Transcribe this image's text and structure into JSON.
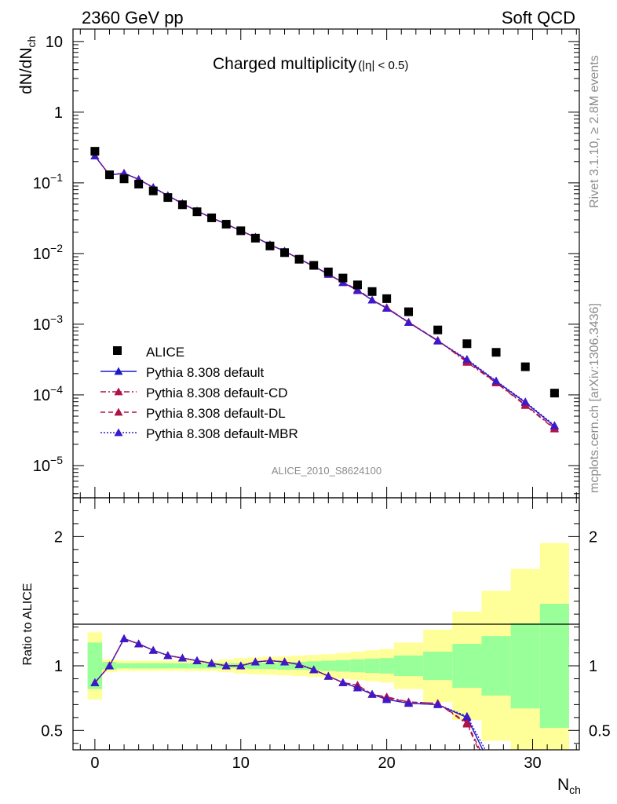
{
  "header": {
    "left": "2360 GeV pp",
    "right": "Soft QCD"
  },
  "side_text": {
    "top": "Rivet 3.1.10, ≥ 2.8M events",
    "bottom": "mcplots.cern.ch [arXiv:1306.3436]"
  },
  "watermark": "ALICE_2010_S8624100",
  "chart_data": [
    {
      "type": "line",
      "title": "Charged multiplicity",
      "title_suffix": "(|η| < 0.5)",
      "ylabel_main": "dN/dN",
      "ylabel_sub": "ch",
      "yscale": "log",
      "ylim": [
        3.5e-06,
        15
      ],
      "xlim": [
        -1.5,
        33.2
      ],
      "ytick_labels": [
        {
          "base": "10",
          "exp": "",
          "value": 10
        },
        {
          "base": "1",
          "exp": "",
          "value": 1
        },
        {
          "base": "10",
          "exp": "−1",
          "value": 0.1
        },
        {
          "base": "10",
          "exp": "−2",
          "value": 0.01
        },
        {
          "base": "10",
          "exp": "−3",
          "value": 0.001
        },
        {
          "base": "10",
          "exp": "−4",
          "value": 0.0001
        },
        {
          "base": "10",
          "exp": "−5",
          "value": 1e-05
        }
      ],
      "legend_position": "bottom-left",
      "data": {
        "name": "ALICE",
        "x": [
          0,
          1,
          2,
          3,
          4,
          5,
          6,
          7,
          8,
          9,
          10,
          11,
          12,
          13,
          14,
          15,
          16,
          17,
          18,
          19,
          20,
          21.5,
          23.5,
          25.5,
          27.5,
          29.5,
          31.5
        ],
        "y": [
          0.28,
          0.13,
          0.114,
          0.096,
          0.077,
          0.062,
          0.049,
          0.039,
          0.032,
          0.026,
          0.021,
          0.0165,
          0.0128,
          0.0103,
          0.0083,
          0.0068,
          0.0055,
          0.0045,
          0.0036,
          0.0029,
          0.0023,
          0.0015,
          0.00083,
          0.00053,
          0.0004,
          0.00025,
          0.000106
        ]
      },
      "series": [
        {
          "name": "Pythia 8.308 default",
          "color": "#1a1acc",
          "style": "solid",
          "x": [
            0,
            1,
            2,
            3,
            4,
            5,
            6,
            7,
            8,
            9,
            10,
            11,
            12,
            13,
            14,
            15,
            16,
            17,
            18,
            19,
            20,
            21.5,
            23.5,
            25.5,
            27.5,
            29.5,
            31.5
          ],
          "y": [
            0.24,
            0.129,
            0.137,
            0.112,
            0.086,
            0.066,
            0.051,
            0.04,
            0.032,
            0.0261,
            0.021,
            0.017,
            0.0133,
            0.0108,
            0.0084,
            0.0066,
            0.0051,
            0.0039,
            0.003,
            0.0022,
            0.00168,
            0.00106,
            0.00058,
            0.00031,
            0.000155,
            7.8e-05,
            3.6e-05
          ]
        },
        {
          "name": "Pythia 8.308 default-CD",
          "color": "#b0124a",
          "style": "dashdot",
          "x": [
            0,
            1,
            2,
            3,
            4,
            5,
            6,
            7,
            8,
            9,
            10,
            11,
            12,
            13,
            14,
            15,
            16,
            17,
            18,
            19,
            20,
            21.5,
            23.5,
            25.5,
            27.5,
            29.5,
            31.5
          ],
          "y": [
            0.24,
            0.129,
            0.137,
            0.112,
            0.086,
            0.066,
            0.051,
            0.04,
            0.032,
            0.0261,
            0.021,
            0.017,
            0.0133,
            0.0108,
            0.0084,
            0.0066,
            0.0051,
            0.0039,
            0.0031,
            0.0022,
            0.00172,
            0.00107,
            0.00059,
            0.00029,
            0.000148,
            7.1e-05,
            3.3e-05
          ]
        },
        {
          "name": "Pythia 8.308 default-DL",
          "color": "#b0124a",
          "style": "dashed",
          "x": [
            0,
            1,
            2,
            3,
            4,
            5,
            6,
            7,
            8,
            9,
            10,
            11,
            12,
            13,
            14,
            15,
            16,
            17,
            18,
            19,
            20,
            21.5,
            23.5,
            25.5,
            27.5,
            29.5,
            31.5
          ],
          "y": [
            0.24,
            0.129,
            0.137,
            0.112,
            0.086,
            0.066,
            0.051,
            0.04,
            0.032,
            0.0261,
            0.021,
            0.017,
            0.0133,
            0.0108,
            0.0084,
            0.0066,
            0.0051,
            0.0039,
            0.0031,
            0.0022,
            0.00171,
            0.00106,
            0.00059,
            0.0003,
            0.00015,
            7.3e-05,
            3.4e-05
          ]
        },
        {
          "name": "Pythia 8.308 default-MBR",
          "color": "#3a1acc",
          "style": "dotted",
          "x": [
            0,
            1,
            2,
            3,
            4,
            5,
            6,
            7,
            8,
            9,
            10,
            11,
            12,
            13,
            14,
            15,
            16,
            17,
            18,
            19,
            20,
            21.5,
            23.5,
            25.5,
            27.5,
            29.5,
            31.5
          ],
          "y": [
            0.24,
            0.129,
            0.137,
            0.112,
            0.086,
            0.066,
            0.051,
            0.04,
            0.032,
            0.0261,
            0.021,
            0.017,
            0.0133,
            0.0108,
            0.0084,
            0.0066,
            0.0051,
            0.0039,
            0.003,
            0.0022,
            0.00168,
            0.00106,
            0.00058,
            0.00032,
            0.000158,
            8e-05,
            3.7e-05
          ]
        }
      ]
    },
    {
      "type": "line",
      "ylabel": "Ratio to ALICE",
      "xlabel_main": "N",
      "xlabel_sub": "ch",
      "ylim": [
        0.35,
        2.3
      ],
      "xlim": [
        -1.5,
        33.2
      ],
      "xticks": [
        0,
        10,
        20,
        30
      ],
      "yticks": [
        0.5,
        1,
        2
      ],
      "ytick_labels": [
        "0.5",
        "1",
        "2"
      ],
      "bands": {
        "x_edges": [
          [
            -0.5,
            0.5
          ],
          [
            0.5,
            1.5
          ],
          [
            1.5,
            2.5
          ],
          [
            2.5,
            3.5
          ],
          [
            3.5,
            4.5
          ],
          [
            4.5,
            5.5
          ],
          [
            5.5,
            6.5
          ],
          [
            6.5,
            7.5
          ],
          [
            7.5,
            8.5
          ],
          [
            8.5,
            9.5
          ],
          [
            9.5,
            10.5
          ],
          [
            10.5,
            11.5
          ],
          [
            11.5,
            12.5
          ],
          [
            12.5,
            13.5
          ],
          [
            13.5,
            14.5
          ],
          [
            14.5,
            15.5
          ],
          [
            15.5,
            16.5
          ],
          [
            16.5,
            17.5
          ],
          [
            17.5,
            18.5
          ],
          [
            18.5,
            19.5
          ],
          [
            19.5,
            20.5
          ],
          [
            20.5,
            22.5
          ],
          [
            22.5,
            24.5
          ],
          [
            24.5,
            26.5
          ],
          [
            26.5,
            28.5
          ],
          [
            28.5,
            30.5
          ],
          [
            30.5,
            32.5
          ]
        ],
        "green_half": [
          0.18,
          0.03,
          0.02,
          0.02,
          0.02,
          0.02,
          0.02,
          0.02,
          0.02,
          0.02,
          0.02,
          0.025,
          0.025,
          0.03,
          0.03,
          0.035,
          0.04,
          0.045,
          0.05,
          0.055,
          0.06,
          0.08,
          0.11,
          0.17,
          0.23,
          0.33,
          0.48
        ],
        "yellow_half": [
          0.26,
          0.05,
          0.04,
          0.04,
          0.04,
          0.04,
          0.04,
          0.04,
          0.04,
          0.05,
          0.06,
          0.065,
          0.07,
          0.075,
          0.08,
          0.085,
          0.09,
          0.1,
          0.11,
          0.12,
          0.13,
          0.18,
          0.28,
          0.42,
          0.58,
          0.75,
          0.95
        ]
      },
      "series": [
        {
          "name": "Pythia 8.308 default",
          "color": "#1a1acc",
          "style": "solid",
          "x": [
            0,
            1,
            2,
            3,
            4,
            5,
            6,
            7,
            8,
            9,
            10,
            11,
            12,
            13,
            14,
            15,
            16,
            17,
            18,
            19,
            20,
            21.5,
            23.5,
            25.5,
            26.8
          ],
          "y": [
            0.87,
            1.0,
            1.21,
            1.17,
            1.12,
            1.08,
            1.06,
            1.04,
            1.02,
            1.0,
            1.0,
            1.03,
            1.04,
            1.03,
            1.01,
            0.97,
            0.92,
            0.87,
            0.83,
            0.78,
            0.74,
            0.71,
            0.7,
            0.6,
            0.3
          ]
        },
        {
          "name": "Pythia 8.308 default-CD",
          "color": "#b0124a",
          "style": "dashdot",
          "x": [
            0,
            1,
            2,
            3,
            4,
            5,
            6,
            7,
            8,
            9,
            10,
            11,
            12,
            13,
            14,
            15,
            16,
            17,
            18,
            19,
            20,
            21.5,
            23.5,
            25.5,
            26.5
          ],
          "y": [
            0.87,
            1.0,
            1.21,
            1.17,
            1.12,
            1.08,
            1.06,
            1.04,
            1.02,
            1.0,
            1.0,
            1.03,
            1.04,
            1.03,
            1.01,
            0.97,
            0.92,
            0.87,
            0.85,
            0.78,
            0.76,
            0.72,
            0.71,
            0.55,
            0.3
          ]
        },
        {
          "name": "Pythia 8.308 default-DL",
          "color": "#b0124a",
          "style": "dashed",
          "x": [
            0,
            1,
            2,
            3,
            4,
            5,
            6,
            7,
            8,
            9,
            10,
            11,
            12,
            13,
            14,
            15,
            16,
            17,
            18,
            19,
            20,
            21.5,
            23.5,
            25.5,
            26.6
          ],
          "y": [
            0.87,
            1.0,
            1.21,
            1.17,
            1.12,
            1.08,
            1.06,
            1.04,
            1.02,
            1.0,
            1.0,
            1.03,
            1.04,
            1.03,
            1.01,
            0.97,
            0.92,
            0.87,
            0.85,
            0.78,
            0.75,
            0.72,
            0.71,
            0.56,
            0.3
          ]
        },
        {
          "name": "Pythia 8.308 default-MBR",
          "color": "#3a1acc",
          "style": "dotted",
          "x": [
            0,
            1,
            2,
            3,
            4,
            5,
            6,
            7,
            8,
            9,
            10,
            11,
            12,
            13,
            14,
            15,
            16,
            17,
            18,
            19,
            20,
            21.5,
            23.5,
            25.5,
            27.0
          ],
          "y": [
            0.87,
            1.0,
            1.21,
            1.17,
            1.12,
            1.08,
            1.06,
            1.04,
            1.02,
            1.0,
            1.0,
            1.03,
            1.04,
            1.03,
            1.01,
            0.97,
            0.92,
            0.87,
            0.83,
            0.78,
            0.74,
            0.71,
            0.7,
            0.61,
            0.3
          ]
        }
      ]
    }
  ]
}
